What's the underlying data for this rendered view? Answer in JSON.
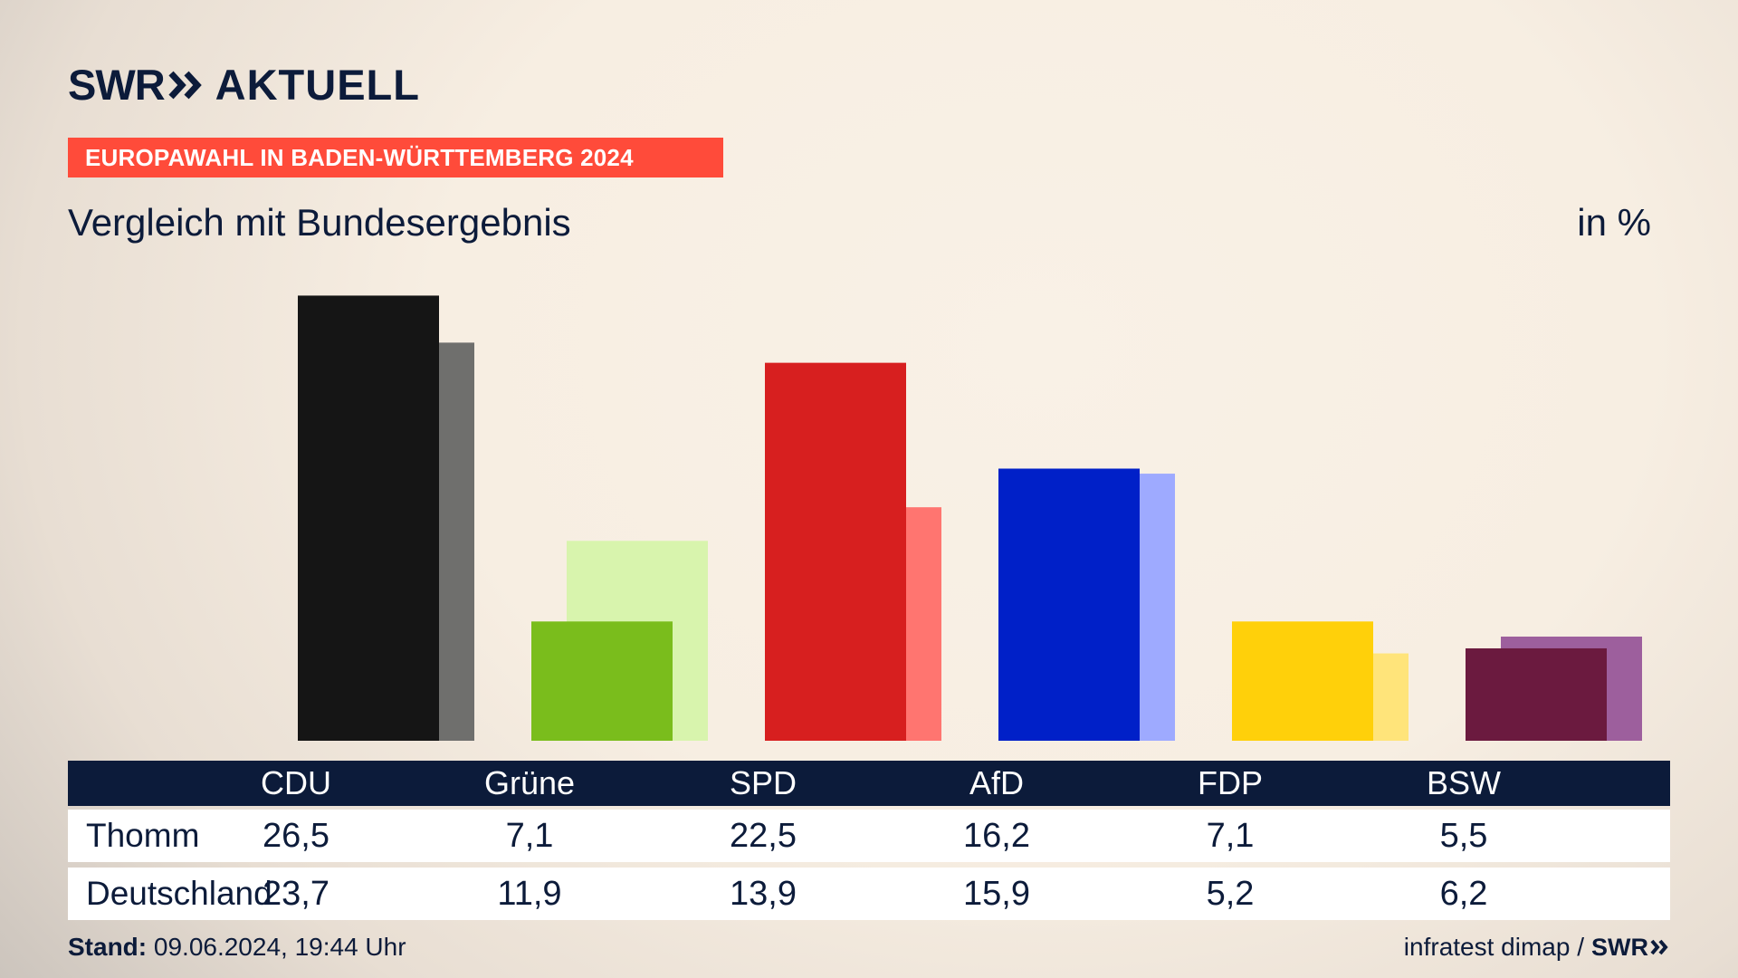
{
  "header": {
    "logo_text": "SWR",
    "brand_suffix": "AKTUELL",
    "kicker": "EUROPAWAHL IN BADEN-WÜRTTEMBERG 2024",
    "subtitle": "Vergleich mit Bundesergebnis",
    "unit": "in %"
  },
  "chart_data": {
    "type": "bar",
    "title": "Vergleich mit Bundesergebnis",
    "unit": "in %",
    "categories": [
      "CDU",
      "Grüne",
      "SPD",
      "AfD",
      "FDP",
      "BSW"
    ],
    "series": [
      {
        "name": "Thomm",
        "values": [
          26.5,
          7.1,
          22.5,
          16.2,
          7.1,
          5.5
        ],
        "colors": [
          "#151515",
          "#7abd1c",
          "#d71f1f",
          "#0020c8",
          "#ffd00a",
          "#6b1a3f"
        ]
      },
      {
        "name": "Deutschland",
        "values": [
          23.7,
          11.9,
          13.9,
          15.9,
          5.2,
          6.2
        ],
        "colors": [
          "#6f6f6d",
          "#d8f4ad",
          "#ff7570",
          "#9eaaff",
          "#ffe47a",
          "#9d5f9d"
        ]
      }
    ],
    "value_labels": [
      [
        "26,5",
        "7,1",
        "22,5",
        "16,2",
        "7,1",
        "5,5"
      ],
      [
        "23,7",
        "11,9",
        "13,9",
        "15,9",
        "5,2",
        "6,2"
      ]
    ],
    "legend": "table-below"
  },
  "footer": {
    "stand_label": "Stand:",
    "stand_value": "09.06.2024, 19:44 Uhr",
    "source": "infratest dimap /",
    "source_logo": "SWR"
  }
}
